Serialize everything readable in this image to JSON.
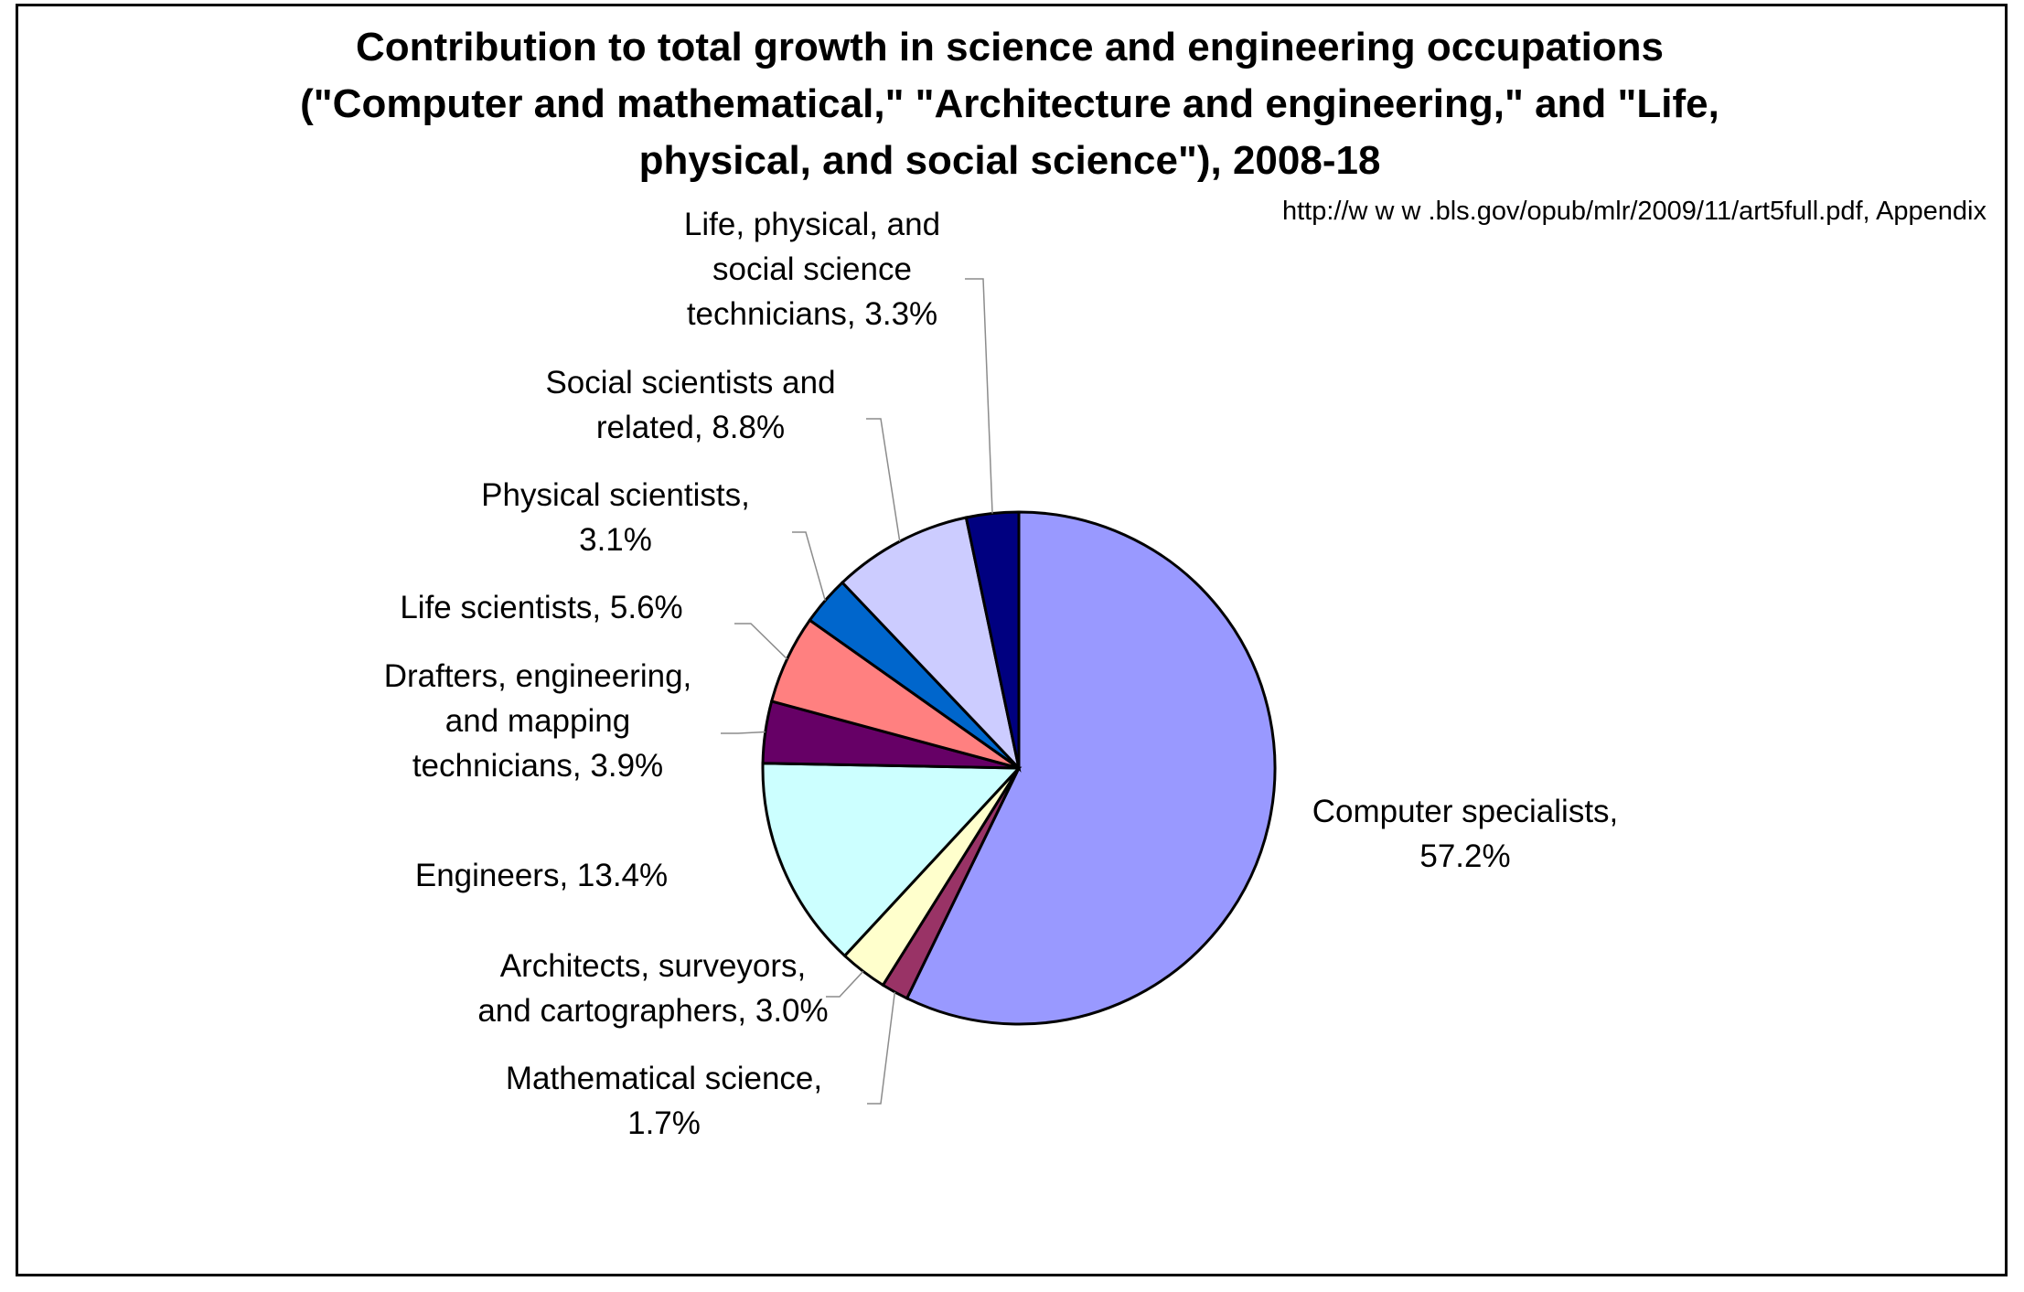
{
  "chart_data": {
    "type": "pie",
    "title": [
      "Contribution to total growth in science and engineering occupations",
      "(\"Computer and mathematical,\" \"Architecture and engineering,\" and \"Life,",
      "physical, and social science\"), 2008-18"
    ],
    "source": "http://w w w .bls.gov/opub/mlr/2009/11/art5full.pdf, Appendix",
    "slices": [
      {
        "name": "Computer specialists",
        "value": 57.2,
        "label": "Computer specialists, | 57.2%",
        "color": "#9999ff"
      },
      {
        "name": "Mathematical science",
        "value": 1.7,
        "label": "Mathematical science, | 1.7%",
        "color": "#993366"
      },
      {
        "name": "Architects, surveyors, and cartographers",
        "value": 3.0,
        "label": "Architects, surveyors, | and cartographers, 3.0%",
        "color": "#ffffcc"
      },
      {
        "name": "Engineers",
        "value": 13.4,
        "label": "Engineers, 13.4%",
        "color": "#ccffff"
      },
      {
        "name": "Drafters, engineering, and mapping technicians",
        "value": 3.9,
        "label": "Drafters, engineering, | and mapping | technicians, 3.9%",
        "color": "#660066"
      },
      {
        "name": "Life scientists",
        "value": 5.6,
        "label": "Life scientists, 5.6%",
        "color": "#ff8080"
      },
      {
        "name": "Physical scientists",
        "value": 3.1,
        "label": "Physical scientists, | 3.1%",
        "color": "#0066cc"
      },
      {
        "name": "Social scientists and related",
        "value": 8.8,
        "label": "Social scientists and | related, 8.8%",
        "color": "#ccccff"
      },
      {
        "name": "Life, physical, and social science technicians",
        "value": 3.3,
        "label": "Life, physical, and | social science | technicians, 3.3%",
        "color": "#000080"
      }
    ]
  }
}
